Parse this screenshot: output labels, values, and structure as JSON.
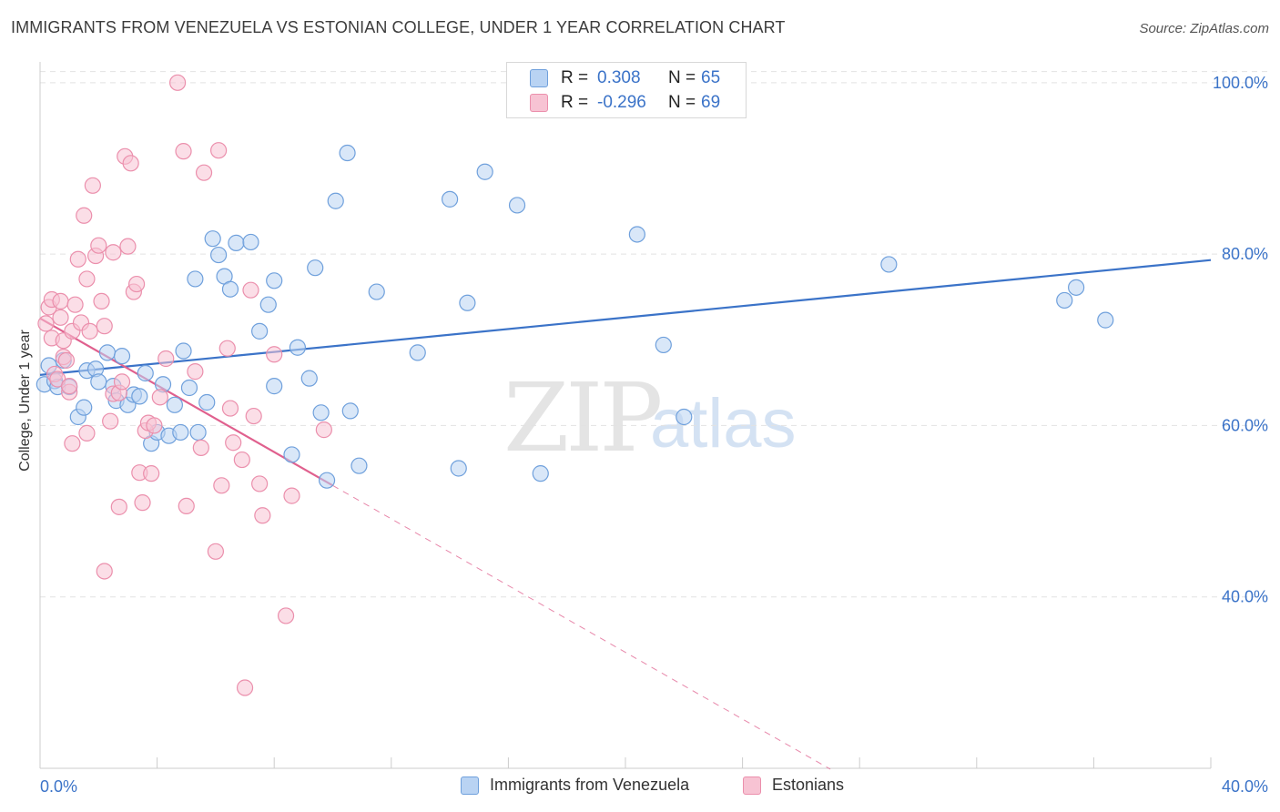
{
  "title": "IMMIGRANTS FROM VENEZUELA VS ESTONIAN COLLEGE, UNDER 1 YEAR CORRELATION CHART",
  "source": "Source: ZipAtlas.com",
  "watermark": {
    "zip": "ZIP",
    "atlas": "atlas"
  },
  "colors": {
    "blue_fill": "#b9d3f3",
    "blue_stroke": "#6fa0dc",
    "blue_line": "#3b73c8",
    "pink_fill": "#f7c3d3",
    "pink_stroke": "#eb8fac",
    "pink_line": "#e0608e",
    "axis_text": "#3b73c8",
    "grid": "#e2e2e2"
  },
  "stats": {
    "blue": {
      "r_label": "R =",
      "r_value": "0.308",
      "n_label": "N =",
      "n_value": "65"
    },
    "pink": {
      "r_label": "R =",
      "r_value": "-0.296",
      "n_label": "N =",
      "n_value": "69"
    }
  },
  "chart_data": {
    "type": "scatter",
    "title": "IMMIGRANTS FROM VENEZUELA VS ESTONIAN COLLEGE, UNDER 1 YEAR CORRELATION CHART",
    "xlabel": "",
    "ylabel": "College, Under 1 year",
    "xlim": [
      0,
      40
    ],
    "ylim": [
      20,
      102
    ],
    "x_tick_labels": [
      "0.0%",
      "40.0%"
    ],
    "y_ticks": [
      40,
      60,
      80,
      100
    ],
    "y_tick_labels": [
      "40.0%",
      "60.0%",
      "80.0%",
      "100.0%"
    ],
    "grid": true,
    "legend": [
      "Immigrants from Venezuela",
      "Estonians"
    ],
    "series": [
      {
        "name": "Immigrants from Venezuela",
        "color": "blue",
        "points": [
          [
            0.15,
            64.8
          ],
          [
            0.3,
            67.0
          ],
          [
            0.5,
            65.2
          ],
          [
            0.6,
            64.5
          ],
          [
            0.8,
            67.6
          ],
          [
            1.0,
            64.5
          ],
          [
            1.3,
            61.0
          ],
          [
            1.5,
            62.1
          ],
          [
            1.6,
            66.4
          ],
          [
            1.9,
            66.6
          ],
          [
            2.0,
            65.1
          ],
          [
            2.3,
            68.5
          ],
          [
            2.5,
            64.6
          ],
          [
            2.6,
            62.9
          ],
          [
            2.8,
            68.1
          ],
          [
            3.0,
            62.4
          ],
          [
            3.2,
            63.6
          ],
          [
            3.4,
            63.4
          ],
          [
            3.6,
            66.1
          ],
          [
            3.8,
            57.9
          ],
          [
            4.0,
            59.2
          ],
          [
            4.2,
            64.8
          ],
          [
            4.4,
            58.8
          ],
          [
            4.6,
            62.4
          ],
          [
            4.8,
            59.2
          ],
          [
            4.9,
            68.7
          ],
          [
            5.1,
            64.4
          ],
          [
            5.3,
            77.1
          ],
          [
            5.4,
            59.2
          ],
          [
            5.7,
            62.7
          ],
          [
            5.9,
            81.8
          ],
          [
            6.1,
            79.9
          ],
          [
            6.3,
            77.4
          ],
          [
            6.5,
            75.9
          ],
          [
            6.7,
            81.3
          ],
          [
            7.2,
            81.4
          ],
          [
            7.5,
            71.0
          ],
          [
            7.8,
            74.1
          ],
          [
            8.0,
            76.9
          ],
          [
            8.0,
            64.6
          ],
          [
            8.6,
            56.6
          ],
          [
            8.8,
            69.1
          ],
          [
            9.2,
            65.5
          ],
          [
            9.4,
            78.4
          ],
          [
            9.6,
            61.5
          ],
          [
            9.8,
            53.6
          ],
          [
            10.1,
            86.2
          ],
          [
            10.5,
            91.8
          ],
          [
            10.6,
            61.7
          ],
          [
            10.9,
            55.3
          ],
          [
            11.5,
            75.6
          ],
          [
            12.9,
            68.5
          ],
          [
            14.0,
            86.4
          ],
          [
            14.3,
            55.0
          ],
          [
            14.6,
            74.3
          ],
          [
            15.2,
            89.6
          ],
          [
            16.3,
            85.7
          ],
          [
            17.1,
            54.4
          ],
          [
            20.4,
            82.3
          ],
          [
            21.3,
            69.4
          ],
          [
            22.0,
            61.0
          ],
          [
            29.0,
            78.8
          ],
          [
            35.0,
            74.6
          ],
          [
            35.4,
            76.1
          ],
          [
            36.4,
            72.3
          ]
        ]
      },
      {
        "name": "Estonians",
        "color": "pink",
        "points": [
          [
            0.2,
            71.9
          ],
          [
            0.3,
            73.8
          ],
          [
            0.4,
            74.7
          ],
          [
            0.4,
            70.2
          ],
          [
            0.5,
            66.0
          ],
          [
            0.6,
            65.4
          ],
          [
            0.7,
            72.6
          ],
          [
            0.7,
            74.5
          ],
          [
            0.8,
            69.9
          ],
          [
            0.8,
            68.0
          ],
          [
            0.9,
            67.6
          ],
          [
            1.0,
            63.9
          ],
          [
            1.0,
            64.6
          ],
          [
            1.1,
            71.0
          ],
          [
            1.1,
            57.9
          ],
          [
            1.2,
            74.1
          ],
          [
            1.3,
            79.4
          ],
          [
            1.4,
            72.0
          ],
          [
            1.5,
            84.5
          ],
          [
            1.6,
            77.1
          ],
          [
            1.6,
            59.1
          ],
          [
            1.7,
            71.0
          ],
          [
            1.8,
            88.0
          ],
          [
            1.9,
            79.8
          ],
          [
            2.0,
            81.0
          ],
          [
            2.1,
            74.5
          ],
          [
            2.2,
            71.6
          ],
          [
            2.2,
            43.0
          ],
          [
            2.4,
            60.5
          ],
          [
            2.5,
            63.7
          ],
          [
            2.5,
            80.2
          ],
          [
            2.7,
            63.8
          ],
          [
            2.7,
            50.5
          ],
          [
            2.8,
            65.1
          ],
          [
            2.9,
            91.4
          ],
          [
            3.0,
            80.9
          ],
          [
            3.1,
            90.6
          ],
          [
            3.2,
            75.6
          ],
          [
            3.3,
            76.5
          ],
          [
            3.4,
            54.5
          ],
          [
            3.5,
            51.0
          ],
          [
            3.6,
            59.4
          ],
          [
            3.7,
            60.3
          ],
          [
            3.8,
            54.4
          ],
          [
            3.9,
            60.0
          ],
          [
            4.1,
            63.3
          ],
          [
            4.3,
            67.8
          ],
          [
            4.7,
            100.0
          ],
          [
            4.9,
            92.0
          ],
          [
            5.0,
            50.6
          ],
          [
            5.3,
            66.3
          ],
          [
            5.5,
            57.4
          ],
          [
            5.6,
            89.5
          ],
          [
            6.0,
            45.3
          ],
          [
            6.1,
            92.1
          ],
          [
            6.2,
            53.0
          ],
          [
            6.4,
            69.0
          ],
          [
            6.5,
            62.0
          ],
          [
            6.6,
            58.0
          ],
          [
            6.9,
            56.0
          ],
          [
            7.0,
            29.4
          ],
          [
            7.2,
            75.8
          ],
          [
            7.3,
            61.1
          ],
          [
            7.5,
            53.2
          ],
          [
            7.6,
            49.5
          ],
          [
            8.0,
            68.3
          ],
          [
            8.4,
            37.8
          ],
          [
            8.6,
            51.8
          ],
          [
            9.7,
            59.5
          ]
        ]
      }
    ],
    "trend_lines": [
      {
        "series": "Immigrants from Venezuela",
        "x0": 0.0,
        "y0": 65.9,
        "x1": 40.0,
        "y1": 79.3,
        "style": "solid"
      },
      {
        "series": "Estonians",
        "x0": 0.0,
        "y0": 72.5,
        "x1": 10.0,
        "y1": 53.0,
        "style": "solid"
      },
      {
        "series": "Estonians",
        "x0": 10.0,
        "y0": 53.0,
        "x1": 27.0,
        "y1": 19.9,
        "style": "dashed"
      }
    ]
  }
}
